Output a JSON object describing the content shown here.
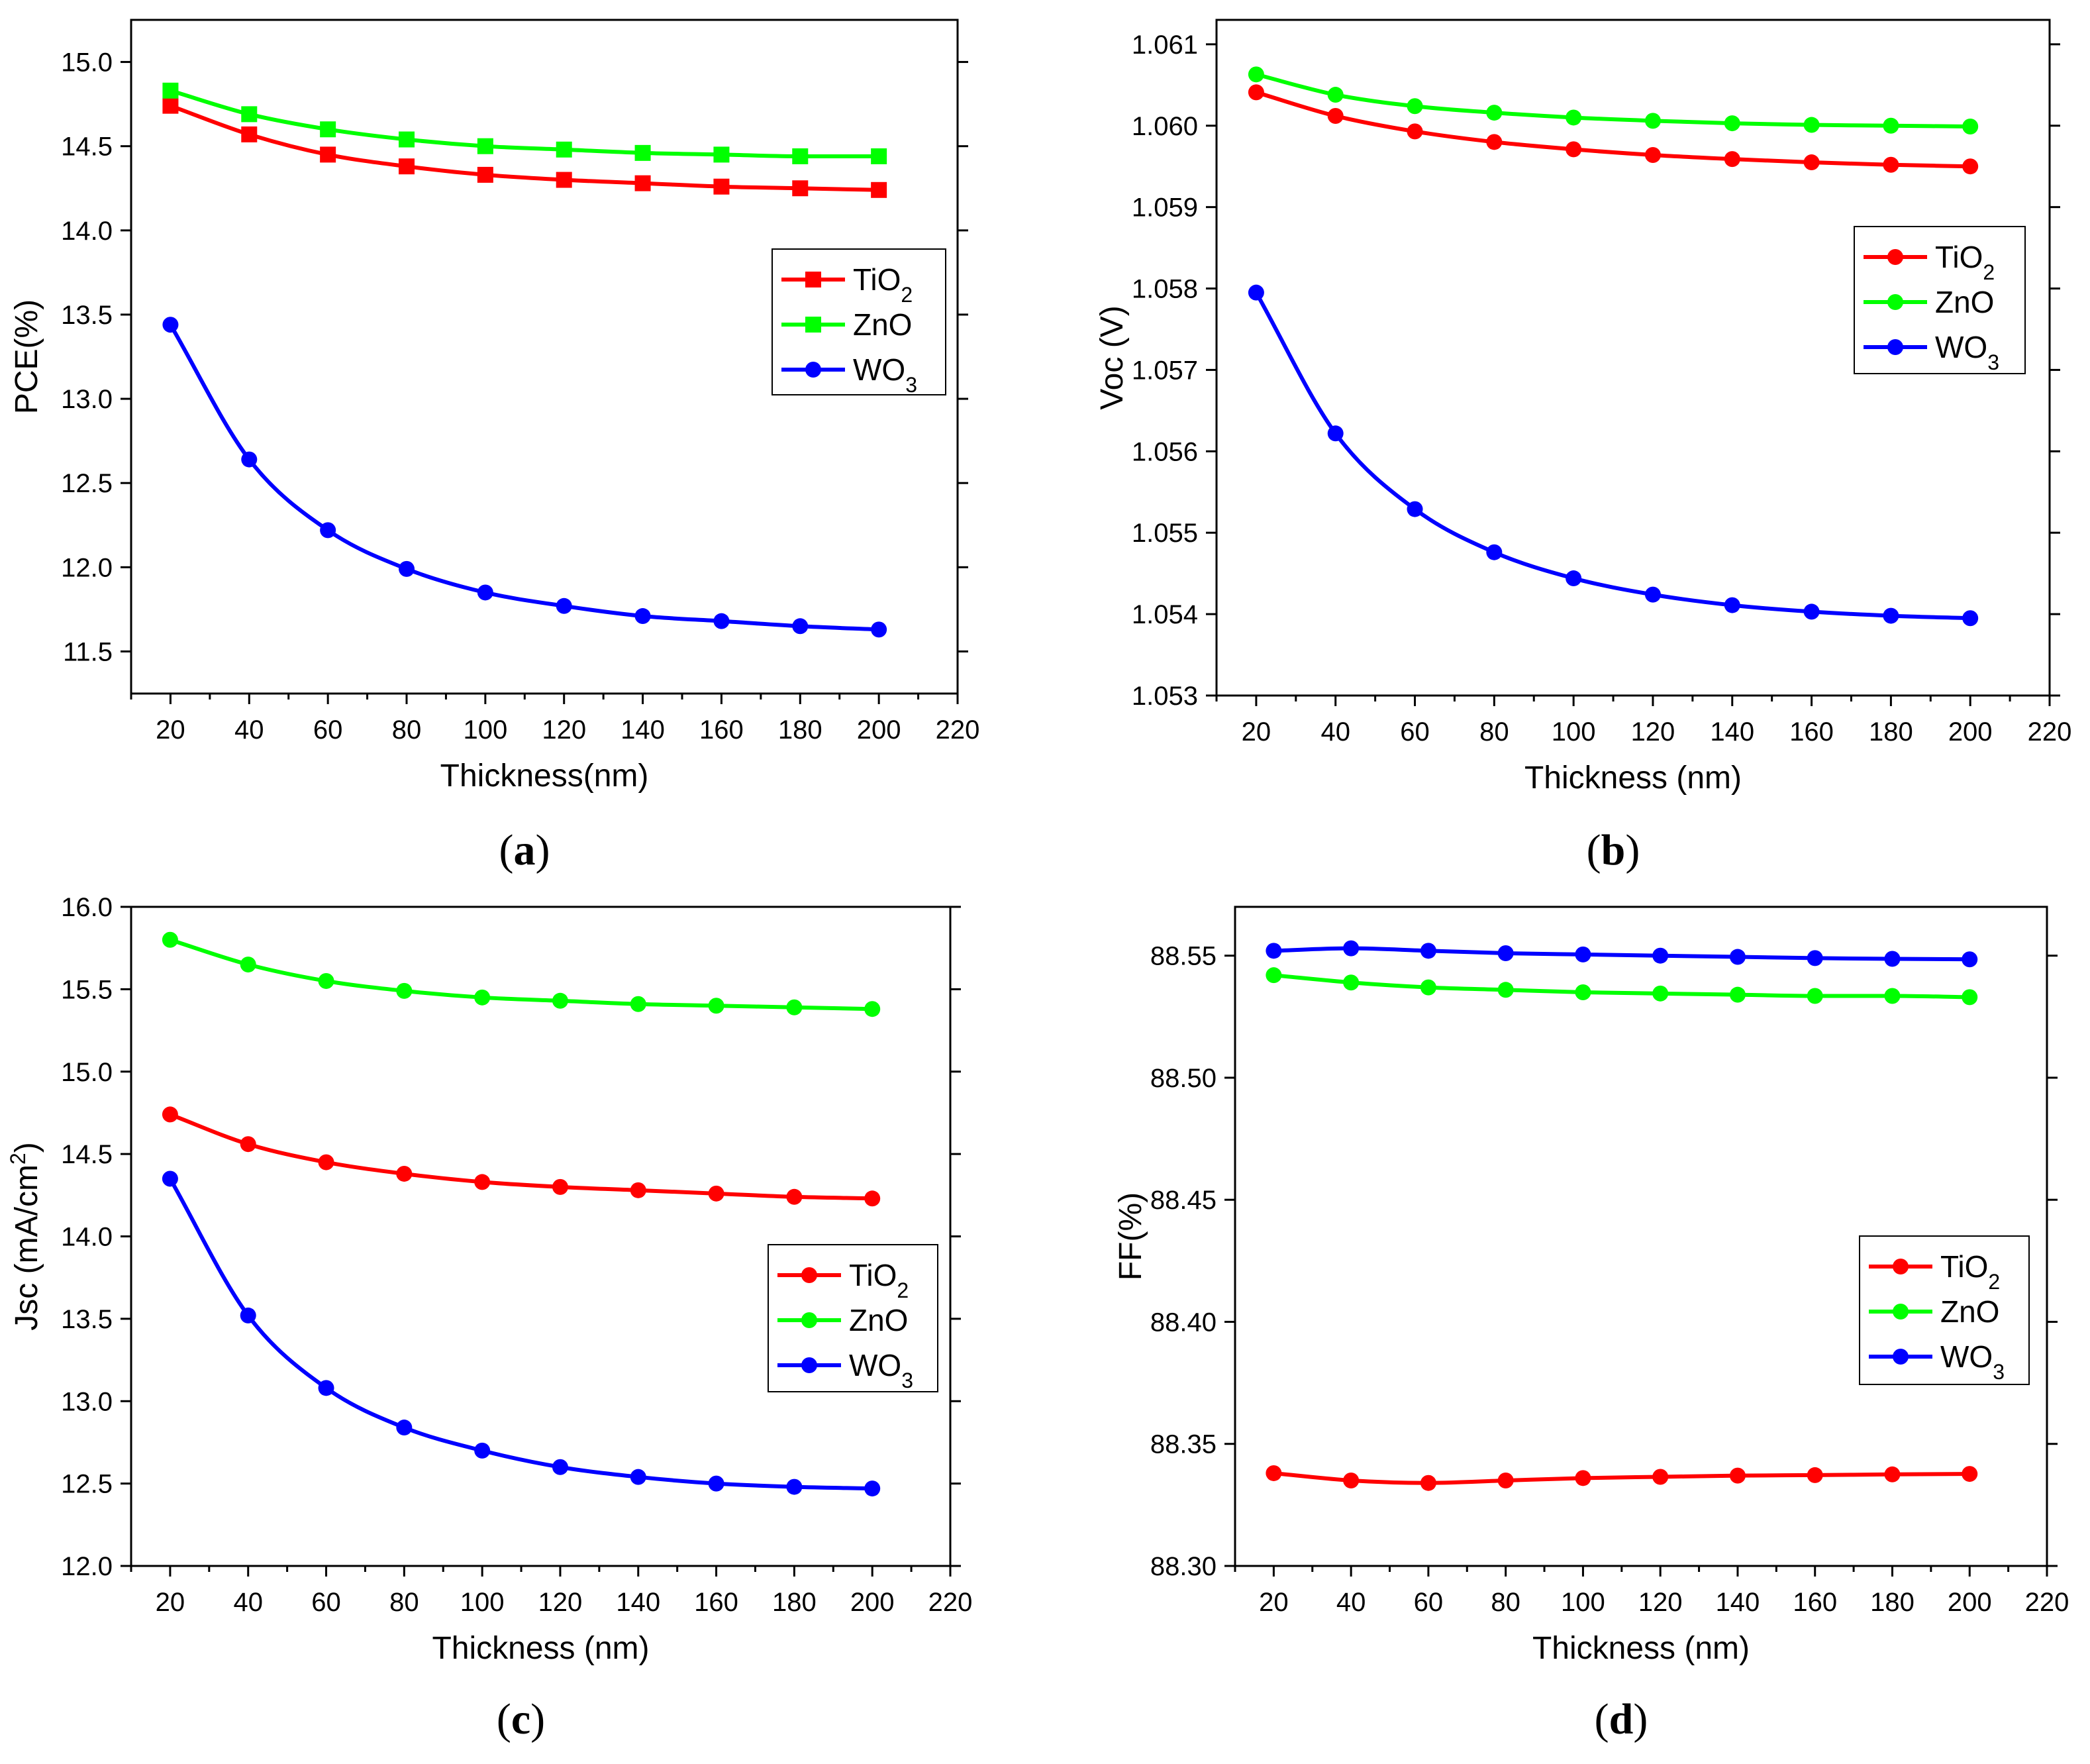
{
  "figure": {
    "captions": [
      "(a)",
      "(b)",
      "(c)",
      "(d)"
    ]
  },
  "colors": {
    "TiO2": "#ff0000",
    "ZnO": "#00ff00",
    "WO3": "#0000ff"
  },
  "chart_data": [
    {
      "type": "line",
      "panel": "a",
      "caption": "(a)",
      "xlabel": "Thickness(nm)",
      "ylabel": "PCE(%)",
      "xlim": [
        10,
        220
      ],
      "ylim": [
        11.25,
        15.25
      ],
      "xticks": [
        20,
        40,
        60,
        80,
        100,
        120,
        140,
        160,
        180,
        200,
        220
      ],
      "yticks": [
        11.5,
        12.0,
        12.5,
        13.0,
        13.5,
        14.0,
        14.5,
        15.0
      ],
      "ytick_labels": [
        "11.5",
        "12.0",
        "12.5",
        "13.0",
        "13.5",
        "14.0",
        "14.5",
        "15.0"
      ],
      "legend_position": "right-middle",
      "x": [
        20,
        40,
        60,
        80,
        100,
        120,
        140,
        160,
        180,
        200
      ],
      "series": [
        {
          "name": "TiO",
          "sub": "2",
          "key": "TiO2",
          "marker": "square",
          "values": [
            14.74,
            14.57,
            14.45,
            14.38,
            14.33,
            14.3,
            14.28,
            14.26,
            14.25,
            14.24
          ]
        },
        {
          "name": "ZnO",
          "sub": "",
          "key": "ZnO",
          "marker": "square",
          "values": [
            14.83,
            14.69,
            14.6,
            14.54,
            14.5,
            14.48,
            14.46,
            14.45,
            14.44,
            14.44
          ]
        },
        {
          "name": "WO",
          "sub": "3",
          "key": "WO3",
          "marker": "circle",
          "values": [
            13.44,
            12.64,
            12.22,
            11.99,
            11.85,
            11.77,
            11.71,
            11.68,
            11.65,
            11.63
          ]
        }
      ]
    },
    {
      "type": "line",
      "panel": "b",
      "caption": "(b)",
      "xlabel": "Thickness (nm)",
      "ylabel": "Voc (V)",
      "xlim": [
        10,
        220
      ],
      "ylim": [
        1.053,
        1.0613
      ],
      "xticks": [
        20,
        40,
        60,
        80,
        100,
        120,
        140,
        160,
        180,
        200,
        220
      ],
      "yticks": [
        1.053,
        1.054,
        1.055,
        1.056,
        1.057,
        1.058,
        1.059,
        1.06,
        1.061
      ],
      "ytick_labels": [
        "1.053",
        "1.054",
        "1.055",
        "1.056",
        "1.057",
        "1.058",
        "1.059",
        "1.060",
        "1.061"
      ],
      "legend_position": "right-middle",
      "x": [
        20,
        40,
        60,
        80,
        100,
        120,
        140,
        160,
        180,
        200
      ],
      "series": [
        {
          "name": "TiO",
          "sub": "2",
          "key": "TiO2",
          "marker": "circle",
          "values": [
            1.06041,
            1.06012,
            1.05993,
            1.0598,
            1.05971,
            1.05964,
            1.05959,
            1.05955,
            1.05952,
            1.0595
          ]
        },
        {
          "name": "ZnO",
          "sub": "",
          "key": "ZnO",
          "marker": "circle",
          "values": [
            1.06063,
            1.06038,
            1.06024,
            1.06016,
            1.0601,
            1.06006,
            1.06003,
            1.06001,
            1.06,
            1.05999
          ]
        },
        {
          "name": "WO",
          "sub": "3",
          "key": "WO3",
          "marker": "circle",
          "values": [
            1.05795,
            1.05622,
            1.05529,
            1.05476,
            1.05444,
            1.05424,
            1.05411,
            1.05403,
            1.05398,
            1.05395
          ]
        }
      ]
    },
    {
      "type": "line",
      "panel": "c",
      "caption": "(c)",
      "xlabel": "Thickness (nm)",
      "ylabel": "Jsc (mA/cm",
      "ylabel_sup": "2",
      "ylabel_end": ")",
      "xlim": [
        10,
        220
      ],
      "ylim": [
        12.0,
        16.0
      ],
      "xticks": [
        20,
        40,
        60,
        80,
        100,
        120,
        140,
        160,
        180,
        200,
        220
      ],
      "yticks": [
        12.0,
        12.5,
        13.0,
        13.5,
        14.0,
        14.5,
        15.0,
        15.5,
        16.0
      ],
      "ytick_labels": [
        "12.0",
        "12.5",
        "13.0",
        "13.5",
        "14.0",
        "14.5",
        "15.0",
        "15.5",
        "16.0"
      ],
      "legend_position": "right-middle",
      "x": [
        20,
        40,
        60,
        80,
        100,
        120,
        140,
        160,
        180,
        200
      ],
      "series": [
        {
          "name": "TiO",
          "sub": "2",
          "key": "TiO2",
          "marker": "circle",
          "values": [
            14.74,
            14.56,
            14.45,
            14.38,
            14.33,
            14.3,
            14.28,
            14.26,
            14.24,
            14.23
          ]
        },
        {
          "name": "ZnO",
          "sub": "",
          "key": "ZnO",
          "marker": "circle",
          "values": [
            15.8,
            15.65,
            15.55,
            15.49,
            15.45,
            15.43,
            15.41,
            15.4,
            15.39,
            15.38
          ]
        },
        {
          "name": "WO",
          "sub": "3",
          "key": "WO3",
          "marker": "circle",
          "values": [
            14.35,
            13.52,
            13.08,
            12.84,
            12.7,
            12.6,
            12.54,
            12.5,
            12.48,
            12.47
          ]
        }
      ]
    },
    {
      "type": "line",
      "panel": "d",
      "caption": "(d)",
      "xlabel": "Thickness (nm)",
      "ylabel": "FF(%)",
      "xlim": [
        10,
        220
      ],
      "ylim": [
        88.3,
        88.57
      ],
      "xticks": [
        20,
        40,
        60,
        80,
        100,
        120,
        140,
        160,
        180,
        200,
        220
      ],
      "yticks": [
        88.3,
        88.35,
        88.4,
        88.45,
        88.5,
        88.55
      ],
      "ytick_labels": [
        "88.30",
        "88.35",
        "88.40",
        "88.45",
        "88.50",
        "88.55"
      ],
      "legend_position": "right-middle",
      "x": [
        20,
        40,
        60,
        80,
        100,
        120,
        140,
        160,
        180,
        200
      ],
      "series": [
        {
          "name": "TiO",
          "sub": "2",
          "key": "TiO2",
          "marker": "circle",
          "values": [
            88.338,
            88.335,
            88.334,
            88.335,
            88.336,
            88.3365,
            88.337,
            88.3372,
            88.3375,
            88.3377
          ]
        },
        {
          "name": "ZnO",
          "sub": "",
          "key": "ZnO",
          "marker": "circle",
          "values": [
            88.542,
            88.539,
            88.537,
            88.536,
            88.535,
            88.5345,
            88.534,
            88.5335,
            88.5335,
            88.533
          ]
        },
        {
          "name": "WO",
          "sub": "3",
          "key": "WO3",
          "marker": "circle",
          "values": [
            88.552,
            88.553,
            88.552,
            88.551,
            88.5505,
            88.55,
            88.5495,
            88.549,
            88.5487,
            88.5485
          ]
        }
      ]
    }
  ]
}
